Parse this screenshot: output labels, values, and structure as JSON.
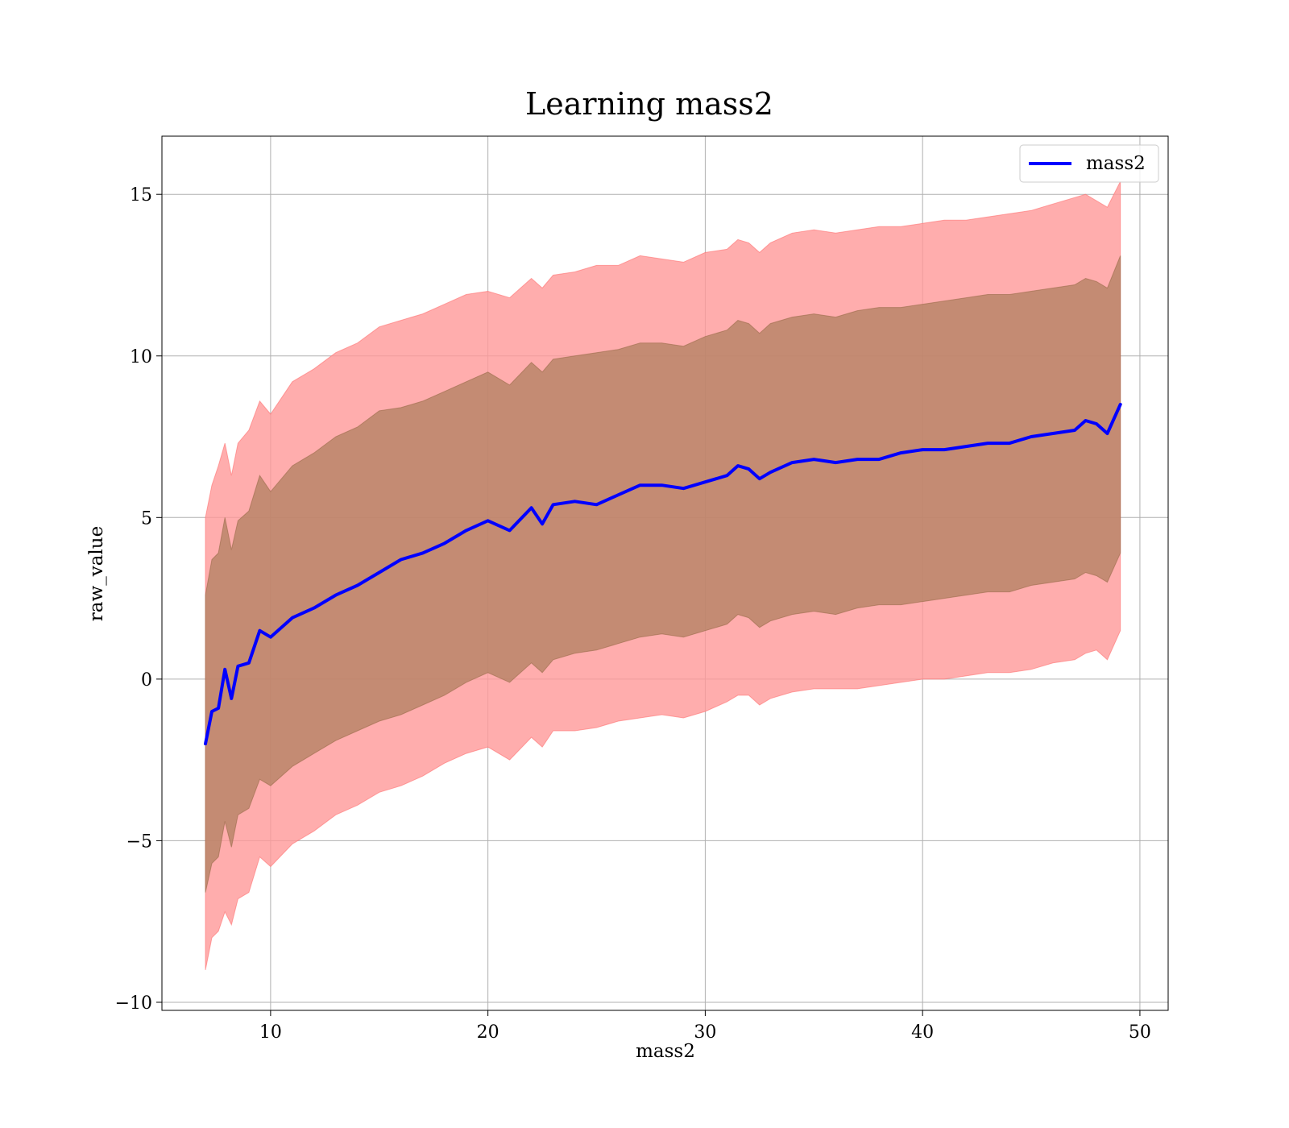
{
  "chart_data": {
    "type": "line",
    "title": "Learning mass2",
    "xlabel": "mass2",
    "ylabel": "raw_value",
    "xlim": [
      5,
      51.3
    ],
    "ylim": [
      -10.25,
      16.8
    ],
    "xticks": [
      10,
      20,
      30,
      40,
      50
    ],
    "xtick_labels": [
      "10",
      "20",
      "30",
      "40",
      "50"
    ],
    "yticks": [
      15,
      10,
      5,
      0,
      -5,
      -10
    ],
    "ytick_labels": [
      "15",
      "10",
      "5",
      "0",
      "−5",
      "−10"
    ],
    "grid": true,
    "legend_position": "top-right",
    "colors": {
      "mean_line": "#0000ff",
      "outer_band": "#ff9999",
      "inner_band": "#b08060"
    },
    "series": [
      {
        "name": "mass2",
        "x": [
          7.0,
          7.3,
          7.6,
          7.9,
          8.2,
          8.5,
          9.0,
          9.5,
          10.0,
          11.0,
          12.0,
          13.0,
          14.0,
          15.0,
          16.0,
          17.0,
          18.0,
          19.0,
          20.0,
          21.0,
          22.0,
          22.5,
          23.0,
          24.0,
          25.0,
          26.0,
          27.0,
          28.0,
          29.0,
          30.0,
          31.0,
          31.5,
          32.0,
          32.5,
          33.0,
          34.0,
          35.0,
          36.0,
          37.0,
          38.0,
          39.0,
          40.0,
          41.0,
          42.0,
          43.0,
          44.0,
          45.0,
          46.0,
          47.0,
          47.5,
          48.0,
          48.5,
          49.1
        ],
        "values": [
          -2.0,
          -1.0,
          -0.9,
          0.3,
          -0.6,
          0.4,
          0.5,
          1.5,
          1.3,
          1.9,
          2.2,
          2.6,
          2.9,
          3.3,
          3.7,
          3.9,
          4.2,
          4.6,
          4.9,
          4.6,
          5.3,
          4.8,
          5.4,
          5.5,
          5.4,
          5.7,
          6.0,
          6.0,
          5.9,
          6.1,
          6.3,
          6.6,
          6.5,
          6.2,
          6.4,
          6.7,
          6.8,
          6.7,
          6.8,
          6.8,
          7.0,
          7.1,
          7.1,
          7.2,
          7.3,
          7.3,
          7.5,
          7.6,
          7.7,
          8.0,
          7.9,
          7.6,
          8.5
        ]
      }
    ],
    "bands": [
      {
        "x": [
          7.0,
          7.3,
          7.6,
          7.9,
          8.2,
          8.5,
          9.0,
          9.5,
          10.0,
          11.0,
          12.0,
          13.0,
          14.0,
          15.0,
          16.0,
          17.0,
          18.0,
          19.0,
          20.0,
          21.0,
          22.0,
          22.5,
          23.0,
          24.0,
          25.0,
          26.0,
          27.0,
          28.0,
          29.0,
          30.0,
          31.0,
          31.5,
          32.0,
          32.5,
          33.0,
          34.0,
          35.0,
          36.0,
          37.0,
          38.0,
          39.0,
          40.0,
          41.0,
          42.0,
          43.0,
          44.0,
          45.0,
          46.0,
          47.0,
          47.5,
          48.0,
          48.5,
          49.1
        ],
        "upper": [
          5.0,
          6.0,
          6.6,
          7.3,
          6.3,
          7.3,
          7.7,
          8.6,
          8.2,
          9.2,
          9.6,
          10.1,
          10.4,
          10.9,
          11.1,
          11.3,
          11.6,
          11.9,
          12.0,
          11.8,
          12.4,
          12.1,
          12.5,
          12.6,
          12.8,
          12.8,
          13.1,
          13.0,
          12.9,
          13.2,
          13.3,
          13.6,
          13.5,
          13.2,
          13.5,
          13.8,
          13.9,
          13.8,
          13.9,
          14.0,
          14.0,
          14.1,
          14.2,
          14.2,
          14.3,
          14.4,
          14.5,
          14.7,
          14.9,
          15.0,
          14.8,
          14.6,
          15.4
        ],
        "lower": [
          -9.0,
          -8.0,
          -7.8,
          -7.2,
          -7.6,
          -6.8,
          -6.6,
          -5.5,
          -5.8,
          -5.1,
          -4.7,
          -4.2,
          -3.9,
          -3.5,
          -3.3,
          -3.0,
          -2.6,
          -2.3,
          -2.1,
          -2.5,
          -1.8,
          -2.1,
          -1.6,
          -1.6,
          -1.5,
          -1.3,
          -1.2,
          -1.1,
          -1.2,
          -1.0,
          -0.7,
          -0.5,
          -0.5,
          -0.8,
          -0.6,
          -0.4,
          -0.3,
          -0.3,
          -0.3,
          -0.2,
          -0.1,
          0.0,
          0.0,
          0.1,
          0.2,
          0.2,
          0.3,
          0.5,
          0.6,
          0.8,
          0.9,
          0.6,
          1.5
        ]
      },
      {
        "x": [
          7.0,
          7.3,
          7.6,
          7.9,
          8.2,
          8.5,
          9.0,
          9.5,
          10.0,
          11.0,
          12.0,
          13.0,
          14.0,
          15.0,
          16.0,
          17.0,
          18.0,
          19.0,
          20.0,
          21.0,
          22.0,
          22.5,
          23.0,
          24.0,
          25.0,
          26.0,
          27.0,
          28.0,
          29.0,
          30.0,
          31.0,
          31.5,
          32.0,
          32.5,
          33.0,
          34.0,
          35.0,
          36.0,
          37.0,
          38.0,
          39.0,
          40.0,
          41.0,
          42.0,
          43.0,
          44.0,
          45.0,
          46.0,
          47.0,
          47.5,
          48.0,
          48.5,
          49.1
        ],
        "upper": [
          2.6,
          3.7,
          3.9,
          5.0,
          4.0,
          4.9,
          5.2,
          6.3,
          5.8,
          6.6,
          7.0,
          7.5,
          7.8,
          8.3,
          8.4,
          8.6,
          8.9,
          9.2,
          9.5,
          9.1,
          9.8,
          9.5,
          9.9,
          10.0,
          10.1,
          10.2,
          10.4,
          10.4,
          10.3,
          10.6,
          10.8,
          11.1,
          11.0,
          10.7,
          11.0,
          11.2,
          11.3,
          11.2,
          11.4,
          11.5,
          11.5,
          11.6,
          11.7,
          11.8,
          11.9,
          11.9,
          12.0,
          12.1,
          12.2,
          12.4,
          12.3,
          12.1,
          13.1
        ],
        "lower": [
          -6.6,
          -5.7,
          -5.5,
          -4.4,
          -5.2,
          -4.2,
          -4.0,
          -3.1,
          -3.3,
          -2.7,
          -2.3,
          -1.9,
          -1.6,
          -1.3,
          -1.1,
          -0.8,
          -0.5,
          -0.1,
          0.2,
          -0.1,
          0.5,
          0.2,
          0.6,
          0.8,
          0.9,
          1.1,
          1.3,
          1.4,
          1.3,
          1.5,
          1.7,
          2.0,
          1.9,
          1.6,
          1.8,
          2.0,
          2.1,
          2.0,
          2.2,
          2.3,
          2.3,
          2.4,
          2.5,
          2.6,
          2.7,
          2.7,
          2.9,
          3.0,
          3.1,
          3.3,
          3.2,
          3.0,
          3.9
        ]
      }
    ]
  }
}
